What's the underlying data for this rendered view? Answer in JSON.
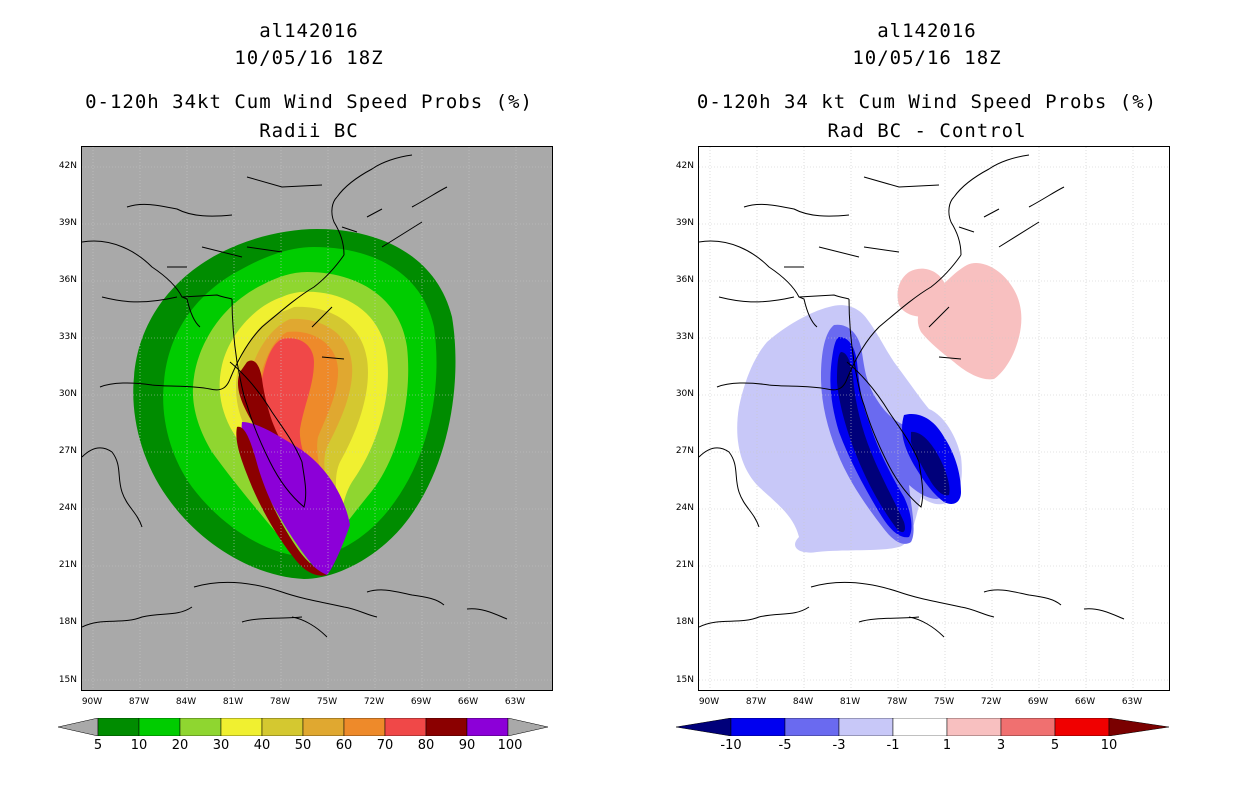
{
  "left": {
    "storm_id": "al142016",
    "datetime": "10/05/16 18Z",
    "title": "0-120h 34kt Cum Wind Speed Probs (%)",
    "subtitle": "Radii BC",
    "lat_labels": [
      "42N",
      "39N",
      "36N",
      "33N",
      "30N",
      "27N",
      "24N",
      "21N",
      "18N",
      "15N"
    ],
    "lon_labels": [
      "90W",
      "87W",
      "84W",
      "81W",
      "78W",
      "75W",
      "72W",
      "69W",
      "66W",
      "63W"
    ],
    "colorbar": {
      "labels": [
        "5",
        "10",
        "20",
        "30",
        "40",
        "50",
        "60",
        "70",
        "80",
        "90",
        "100"
      ],
      "colors": [
        "#008c00",
        "#00cc00",
        "#8fd630",
        "#f0f030",
        "#d4c830",
        "#e0a830",
        "#ee8a2a",
        "#f04848",
        "#8b0000",
        "#8c00d8"
      ],
      "under_color": "#a9a9a9",
      "over_color": "#a9a9a9"
    }
  },
  "right": {
    "storm_id": "al142016",
    "datetime": "10/05/16 18Z",
    "title": "0-120h 34 kt Cum Wind Speed Probs (%)",
    "subtitle": "Rad BC - Control",
    "lat_labels": [
      "42N",
      "39N",
      "36N",
      "33N",
      "30N",
      "27N",
      "24N",
      "21N",
      "18N",
      "15N"
    ],
    "lon_labels": [
      "90W",
      "87W",
      "84W",
      "81W",
      "78W",
      "75W",
      "72W",
      "69W",
      "66W",
      "63W"
    ],
    "colorbar": {
      "labels": [
        "-10",
        "-5",
        "-3",
        "-1",
        "1",
        "3",
        "5",
        "10"
      ],
      "colors": [
        "#0000f0",
        "#6a6af0",
        "#c8c8f8",
        "#ffffff",
        "#f8c0c0",
        "#f07070",
        "#f00000"
      ],
      "under_color": "#00007a",
      "over_color": "#7a0000"
    }
  }
}
